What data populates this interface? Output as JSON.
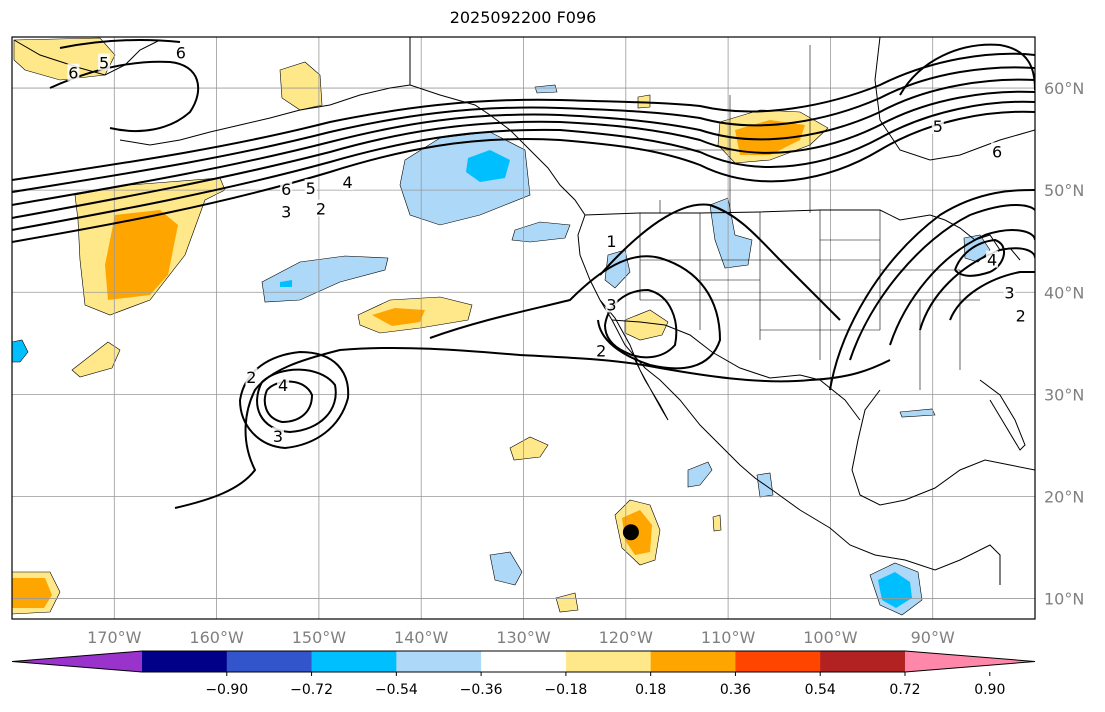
{
  "title": "2025092200 F096",
  "map": {
    "lon_range": [
      -180,
      -80
    ],
    "lat_range": [
      8,
      65
    ],
    "lon_ticks": [
      {
        "value": -170,
        "label": "170°W"
      },
      {
        "value": -160,
        "label": "160°W"
      },
      {
        "value": -150,
        "label": "150°W"
      },
      {
        "value": -140,
        "label": "140°W"
      },
      {
        "value": -130,
        "label": "130°W"
      },
      {
        "value": -120,
        "label": "120°W"
      },
      {
        "value": -110,
        "label": "110°W"
      },
      {
        "value": -100,
        "label": "100°W"
      },
      {
        "value": -90,
        "label": "90°W"
      }
    ],
    "lat_ticks": [
      {
        "value": 60,
        "label": "60°N"
      },
      {
        "value": 50,
        "label": "50°N"
      },
      {
        "value": 40,
        "label": "40°N"
      },
      {
        "value": 30,
        "label": "30°N"
      },
      {
        "value": 20,
        "label": "20°N"
      },
      {
        "value": 10,
        "label": "10°N"
      }
    ],
    "grid": true,
    "marker": {
      "lon": -119.5,
      "lat": 16.5
    }
  },
  "colorbar": {
    "colors": [
      "#9933cc",
      "#000088",
      "#3355cc",
      "#00bfff",
      "#add8f7",
      "#ffffff",
      "#ffe88a",
      "#ffa500",
      "#ff4500",
      "#b22222",
      "#ff88aa"
    ],
    "ticks": [
      "−0.90",
      "−0.72",
      "−0.54",
      "−0.36",
      "−0.18",
      "0.18",
      "0.36",
      "0.54",
      "0.72",
      "0.90"
    ]
  },
  "contour_labels": [
    {
      "text": "6",
      "lon": -163.5,
      "lat": 63.5
    },
    {
      "text": "5",
      "lon": -171,
      "lat": 62.5
    },
    {
      "text": "6",
      "lon": -174,
      "lat": 61.5
    },
    {
      "text": "6",
      "lon": -153.2,
      "lat": 50.1
    },
    {
      "text": "5",
      "lon": -150.8,
      "lat": 50.2
    },
    {
      "text": "4",
      "lon": -147.2,
      "lat": 50.8
    },
    {
      "text": "3",
      "lon": -153.2,
      "lat": 47.9
    },
    {
      "text": "2",
      "lon": -149.8,
      "lat": 48.2
    },
    {
      "text": "1",
      "lon": -121.4,
      "lat": 45.0
    },
    {
      "text": "3",
      "lon": -121.4,
      "lat": 38.8
    },
    {
      "text": "2",
      "lon": -122.4,
      "lat": 34.3
    },
    {
      "text": "2",
      "lon": -156.6,
      "lat": 31.7
    },
    {
      "text": "4",
      "lon": -153.5,
      "lat": 30.9
    },
    {
      "text": "3",
      "lon": -154,
      "lat": 25.9
    },
    {
      "text": "5",
      "lon": -89.5,
      "lat": 56.3
    },
    {
      "text": "6",
      "lon": -83.7,
      "lat": 53.8
    },
    {
      "text": "4",
      "lon": -84.2,
      "lat": 43.2
    },
    {
      "text": "3",
      "lon": -82.5,
      "lat": 40.0
    },
    {
      "text": "2",
      "lon": -81.4,
      "lat": 37.7
    }
  ]
}
